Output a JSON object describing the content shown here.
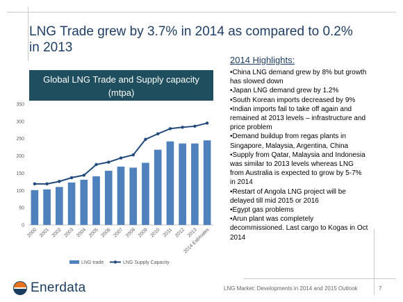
{
  "slide": {
    "title": "LNG Trade grew by 3.7% in 2014 as compared to 0.2% in 2013",
    "chart_header": "Global LNG Trade and Supply capacity (mtpa)",
    "highlights_title": "2014 Highlights:",
    "highlights": [
      "•China LNG demand grew by 8% but growth has slowed down",
      "•Japan LNG demand grew by 1.2%",
      "•South Korean imports decreased by 9%",
      "•Indian imports fail to take off again and remained at 2013 levels – infrastructure and price problem",
      "•Demand buildup from regas plants in Singapore, Malaysia, Argentina, China",
      "•Supply from Qatar, Malaysia and Indonesia was similar to 2013 levels whereas LNG from Australia is expected to grow by 5-7% in 2014",
      "•Restart of Angola LNG project will be delayed till mid 2015 or 2016",
      "•Egypt gas problems",
      "•Arun plant was completely decommissioned. Last cargo to Kogas in Oct 2014"
    ],
    "logo_text": "Enerdata",
    "footer_text": "LNG Market: Developments in 2014 and 2015 Outlook",
    "page_number": "7"
  },
  "colors": {
    "bar": "#4f81bd",
    "line": "#1f497d",
    "header_bg": "#1f4e5e",
    "title": "#1f3e66"
  },
  "chart_data": {
    "type": "bar",
    "categories": [
      "2000",
      "2001",
      "2002",
      "2003",
      "2004",
      "2005",
      "2006",
      "2007",
      "2008",
      "2009",
      "2010",
      "2011",
      "2012",
      "2013",
      "2014 Estimates"
    ],
    "series": [
      {
        "name": "LNG trade",
        "type": "bar",
        "values": [
          101,
          103,
          110,
          123,
          131,
          141,
          157,
          169,
          166,
          180,
          218,
          242,
          236,
          236,
          245
        ]
      },
      {
        "name": "LNG Supply Capacity",
        "type": "line",
        "values": [
          119,
          119,
          126,
          137,
          144,
          175,
          182,
          194,
          203,
          248,
          264,
          279,
          283,
          286,
          295
        ]
      }
    ],
    "ylim": [
      0,
      350
    ],
    "yticks": [
      0,
      50,
      100,
      150,
      200,
      250,
      300,
      350
    ],
    "legend_position": "bottom",
    "grid": false
  }
}
